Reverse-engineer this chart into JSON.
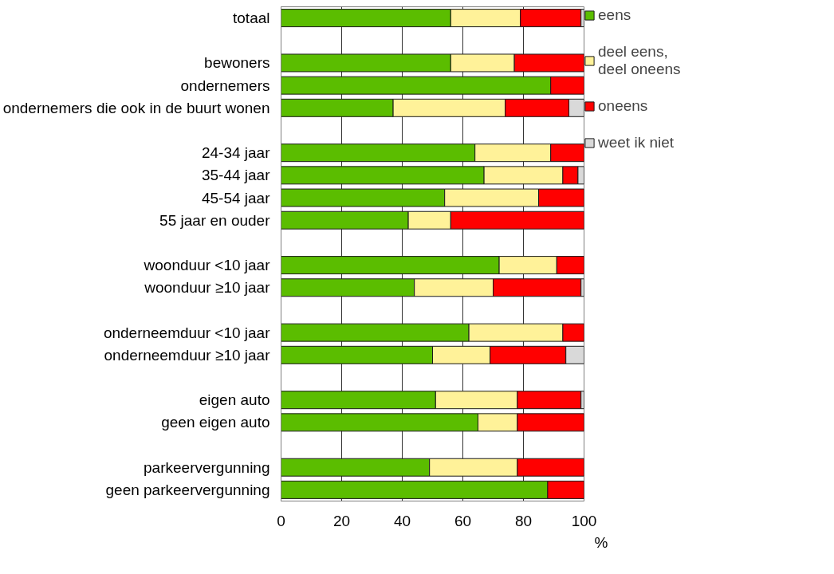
{
  "chart_data": {
    "type": "bar",
    "orientation": "horizontal",
    "stacked": true,
    "categories": [
      "totaal",
      null,
      "bewoners",
      "ondernemers",
      "ondernemers die ook in de buurt wonen",
      null,
      "24-34 jaar",
      "35-44 jaar",
      "45-54 jaar",
      "55 jaar en ouder",
      null,
      "woonduur <10 jaar",
      "woonduur ≥10 jaar",
      null,
      "onderneemduur <10 jaar",
      "onderneemduur ≥10 jaar",
      null,
      "eigen auto",
      "geen eigen auto",
      null,
      "parkeervergunning",
      "geen parkeervergunning"
    ],
    "series": [
      {
        "name": "eens",
        "color": "#5bbd00",
        "values": [
          56,
          null,
          56,
          89,
          37,
          null,
          64,
          67,
          54,
          42,
          null,
          72,
          44,
          null,
          62,
          50,
          null,
          51,
          65,
          null,
          49,
          88
        ]
      },
      {
        "name": "deel eens,\ndeel oneens",
        "color": "#fff299",
        "values": [
          23,
          null,
          21,
          null,
          37,
          null,
          25,
          26,
          31,
          14,
          null,
          19,
          26,
          null,
          31,
          19,
          null,
          27,
          13,
          null,
          29,
          null
        ]
      },
      {
        "name": "oneens",
        "color": "#ff0000",
        "values": [
          20,
          null,
          23,
          11,
          21,
          null,
          11,
          5,
          15,
          44,
          null,
          9,
          29,
          null,
          7,
          25,
          null,
          21,
          22,
          null,
          22,
          12
        ]
      },
      {
        "name": "weet ik niet",
        "color": "#d9d9d9",
        "values": [
          1,
          null,
          null,
          null,
          5,
          null,
          null,
          2,
          null,
          null,
          null,
          null,
          1,
          null,
          null,
          6,
          null,
          1,
          null,
          null,
          null,
          null
        ]
      }
    ],
    "xlim": [
      0,
      100
    ],
    "xticks": [
      0,
      20,
      40,
      60,
      80,
      100
    ],
    "grid": "x",
    "legend": "right",
    "annotations": [
      "%"
    ]
  }
}
